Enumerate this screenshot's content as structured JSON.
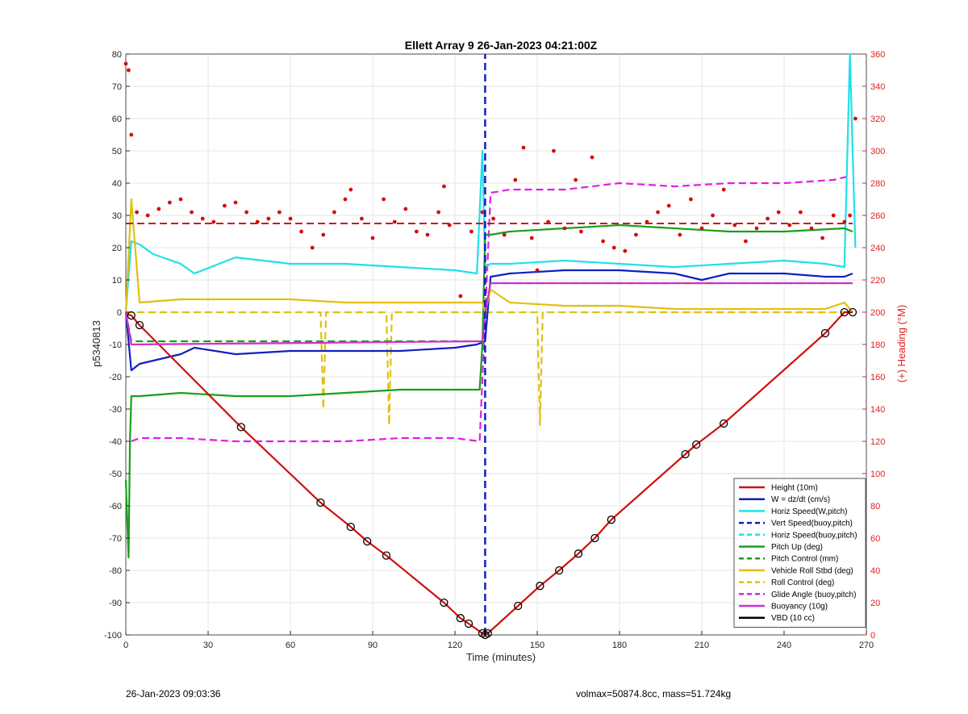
{
  "chart_data": {
    "type": "line",
    "title": "Ellett Array 9 26-Jan-2023 04:21:00Z",
    "xlabel": "Time (minutes)",
    "ylabel": "p5340813",
    "y2label": "(+) Heading (°M)",
    "xlim": [
      0,
      270
    ],
    "ylim": [
      -100,
      80
    ],
    "y2lim": [
      0,
      360
    ],
    "xticks": [
      0,
      30,
      60,
      90,
      120,
      150,
      180,
      210,
      240,
      270
    ],
    "yticks": [
      -100,
      -90,
      -80,
      -70,
      -60,
      -50,
      -40,
      -30,
      -20,
      -10,
      0,
      10,
      20,
      30,
      40,
      50,
      60,
      70,
      80
    ],
    "y2ticks": [
      0,
      20,
      40,
      60,
      80,
      100,
      120,
      140,
      160,
      180,
      200,
      220,
      240,
      260,
      280,
      300,
      320,
      340,
      360
    ],
    "grid": true,
    "legend_position": "bottom-right",
    "series": [
      {
        "name": "Height (10m)",
        "color": "#d01010",
        "style": "solid",
        "x": [
          0,
          2,
          5,
          42,
          71,
          82,
          88,
          95,
          116,
          122,
          125,
          130,
          131,
          132,
          143,
          151,
          158,
          165,
          171,
          177,
          204,
          208,
          218,
          255,
          262,
          265
        ],
        "y": [
          -0.5,
          -1,
          -4,
          -35.6,
          -59,
          -66.5,
          -71,
          -75.4,
          -90,
          -94.8,
          -96.5,
          -99.5,
          -100,
          -99.5,
          -91,
          -84.8,
          -80,
          -74.8,
          -70,
          -64.3,
          -44,
          -41,
          -34.5,
          -6.5,
          0,
          0
        ]
      },
      {
        "name": "W = dz/dt (cm/s)",
        "color": "#1020c0",
        "style": "solid",
        "x": [
          0,
          2,
          5,
          10,
          20,
          25,
          40,
          60,
          80,
          100,
          120,
          128,
          131,
          133,
          140,
          160,
          180,
          200,
          210,
          220,
          240,
          255,
          262,
          265
        ],
        "y": [
          0,
          -18,
          -16,
          -15,
          -13,
          -11,
          -13,
          -12,
          -12,
          -12,
          -11,
          -10,
          -9,
          11,
          12,
          13,
          13,
          12,
          10,
          12,
          12,
          11,
          11,
          12
        ]
      },
      {
        "name": "Horiz Speed(W,pitch)",
        "color": "#20e0e8",
        "style": "solid",
        "x": [
          0,
          2,
          5,
          10,
          20,
          25,
          40,
          60,
          80,
          100,
          120,
          128,
          130,
          131,
          133,
          140,
          160,
          180,
          200,
          220,
          240,
          255,
          262,
          264,
          266
        ],
        "y": [
          0,
          22,
          21,
          18,
          15,
          12,
          17,
          15,
          15,
          14,
          13,
          12,
          50,
          14,
          15,
          15,
          16,
          15,
          14,
          15,
          16,
          15,
          14,
          80,
          20
        ]
      },
      {
        "name": "Vert Speed(buoy,pitch)",
        "color": "#1020c0",
        "style": "dashed",
        "x": [
          131,
          131
        ],
        "y": [
          -100,
          80
        ]
      },
      {
        "name": "Horiz Speed(buoy,pitch)",
        "color": "#20e0e8",
        "style": "dashed",
        "x": [],
        "y": []
      },
      {
        "name": "Pitch Up (deg)",
        "color": "#18a018",
        "style": "solid",
        "x": [
          0,
          1,
          1.5,
          2,
          5,
          20,
          40,
          60,
          80,
          100,
          120,
          129,
          130,
          131,
          133,
          140,
          160,
          180,
          200,
          220,
          240,
          262,
          265
        ],
        "y": [
          -52,
          -76,
          -40,
          -26,
          -26,
          -25,
          -26,
          -26,
          -25,
          -24,
          -24,
          -24,
          -10,
          24,
          24,
          25,
          26,
          27,
          26,
          25,
          25,
          26,
          25
        ]
      },
      {
        "name": "Pitch Control (mm)",
        "color": "#18a018",
        "style": "dashed",
        "x": [
          0,
          2,
          130,
          131,
          133,
          265
        ],
        "y": [
          0,
          -9,
          -9,
          0,
          9,
          9
        ]
      },
      {
        "name": "Vehicle Roll Stbd (deg)",
        "color": "#e0c010",
        "style": "solid",
        "x": [
          0,
          2,
          5,
          20,
          40,
          60,
          80,
          100,
          120,
          130,
          131,
          133,
          140,
          160,
          180,
          200,
          220,
          240,
          255,
          262,
          265
        ],
        "y": [
          0,
          35,
          3,
          4,
          4,
          4,
          3,
          3,
          3,
          3,
          0,
          7,
          3,
          2,
          2,
          1,
          1,
          1,
          1,
          3,
          0
        ]
      },
      {
        "name": "Roll Control (deg)",
        "color": "#e0c010",
        "style": "dashed",
        "x": [
          0,
          5,
          71,
          72,
          73,
          95,
          96,
          97,
          130,
          133,
          140,
          150,
          151,
          152,
          265
        ],
        "y": [
          0,
          0,
          0,
          -30,
          0,
          0,
          -35,
          0,
          0,
          0,
          0,
          0,
          -35,
          0,
          0
        ]
      },
      {
        "name": "Glide Angle (buoy,pitch)",
        "color": "#e020e0",
        "style": "dashed",
        "x": [
          2,
          5,
          20,
          40,
          60,
          80,
          100,
          120,
          129,
          133,
          140,
          160,
          180,
          200,
          220,
          240,
          258,
          263
        ],
        "y": [
          -40,
          -39,
          -39,
          -40,
          -40,
          -40,
          -39,
          -39,
          -40,
          37,
          38,
          38,
          40,
          39,
          40,
          40,
          41,
          42
        ]
      },
      {
        "name": "Buoyancy (10g)",
        "color": "#d030d0",
        "style": "solid",
        "x": [
          0,
          2,
          130,
          131,
          133,
          265
        ],
        "y": [
          0,
          -10,
          -9,
          0,
          9,
          9
        ]
      },
      {
        "name": "VBD (10 cc)",
        "color": "#000000",
        "style": "solid",
        "x": [
          0,
          1,
          2,
          130,
          131,
          133,
          262,
          263,
          265
        ],
        "y": [
          48,
          10,
          -9,
          -9,
          0,
          9,
          9,
          14,
          25
        ]
      }
    ],
    "heading_series": {
      "name": "Heading",
      "color": "#d01010",
      "style": "dotted",
      "mean_heading": 255,
      "x": [
        0,
        1,
        2,
        4,
        8,
        12,
        16,
        20,
        24,
        28,
        32,
        36,
        40,
        44,
        48,
        52,
        56,
        60,
        64,
        68,
        72,
        76,
        80,
        82,
        86,
        90,
        94,
        98,
        102,
        106,
        110,
        114,
        116,
        118,
        122,
        126,
        130,
        134,
        138,
        142,
        145,
        148,
        150,
        154,
        156,
        160,
        164,
        166,
        170,
        174,
        178,
        182,
        186,
        190,
        194,
        198,
        202,
        206,
        210,
        214,
        218,
        222,
        226,
        230,
        234,
        238,
        242,
        246,
        250,
        254,
        258,
        262,
        264,
        266
      ],
      "y": [
        354,
        350,
        310,
        262,
        260,
        264,
        268,
        270,
        262,
        258,
        256,
        266,
        268,
        262,
        256,
        258,
        262,
        258,
        250,
        240,
        248,
        262,
        270,
        276,
        258,
        246,
        270,
        256,
        264,
        250,
        248,
        262,
        278,
        254,
        210,
        250,
        262,
        258,
        248,
        282,
        302,
        246,
        226,
        256,
        300,
        252,
        282,
        250,
        296,
        244,
        240,
        238,
        248,
        256,
        262,
        266,
        248,
        270,
        252,
        260,
        276,
        254,
        244,
        252,
        258,
        262,
        254,
        262,
        252,
        246,
        260,
        256,
        260,
        320
      ]
    }
  },
  "footer": {
    "left": "26-Jan-2023 09:03:36",
    "right": "volmax=50874.8cc, mass=51.724kg"
  }
}
